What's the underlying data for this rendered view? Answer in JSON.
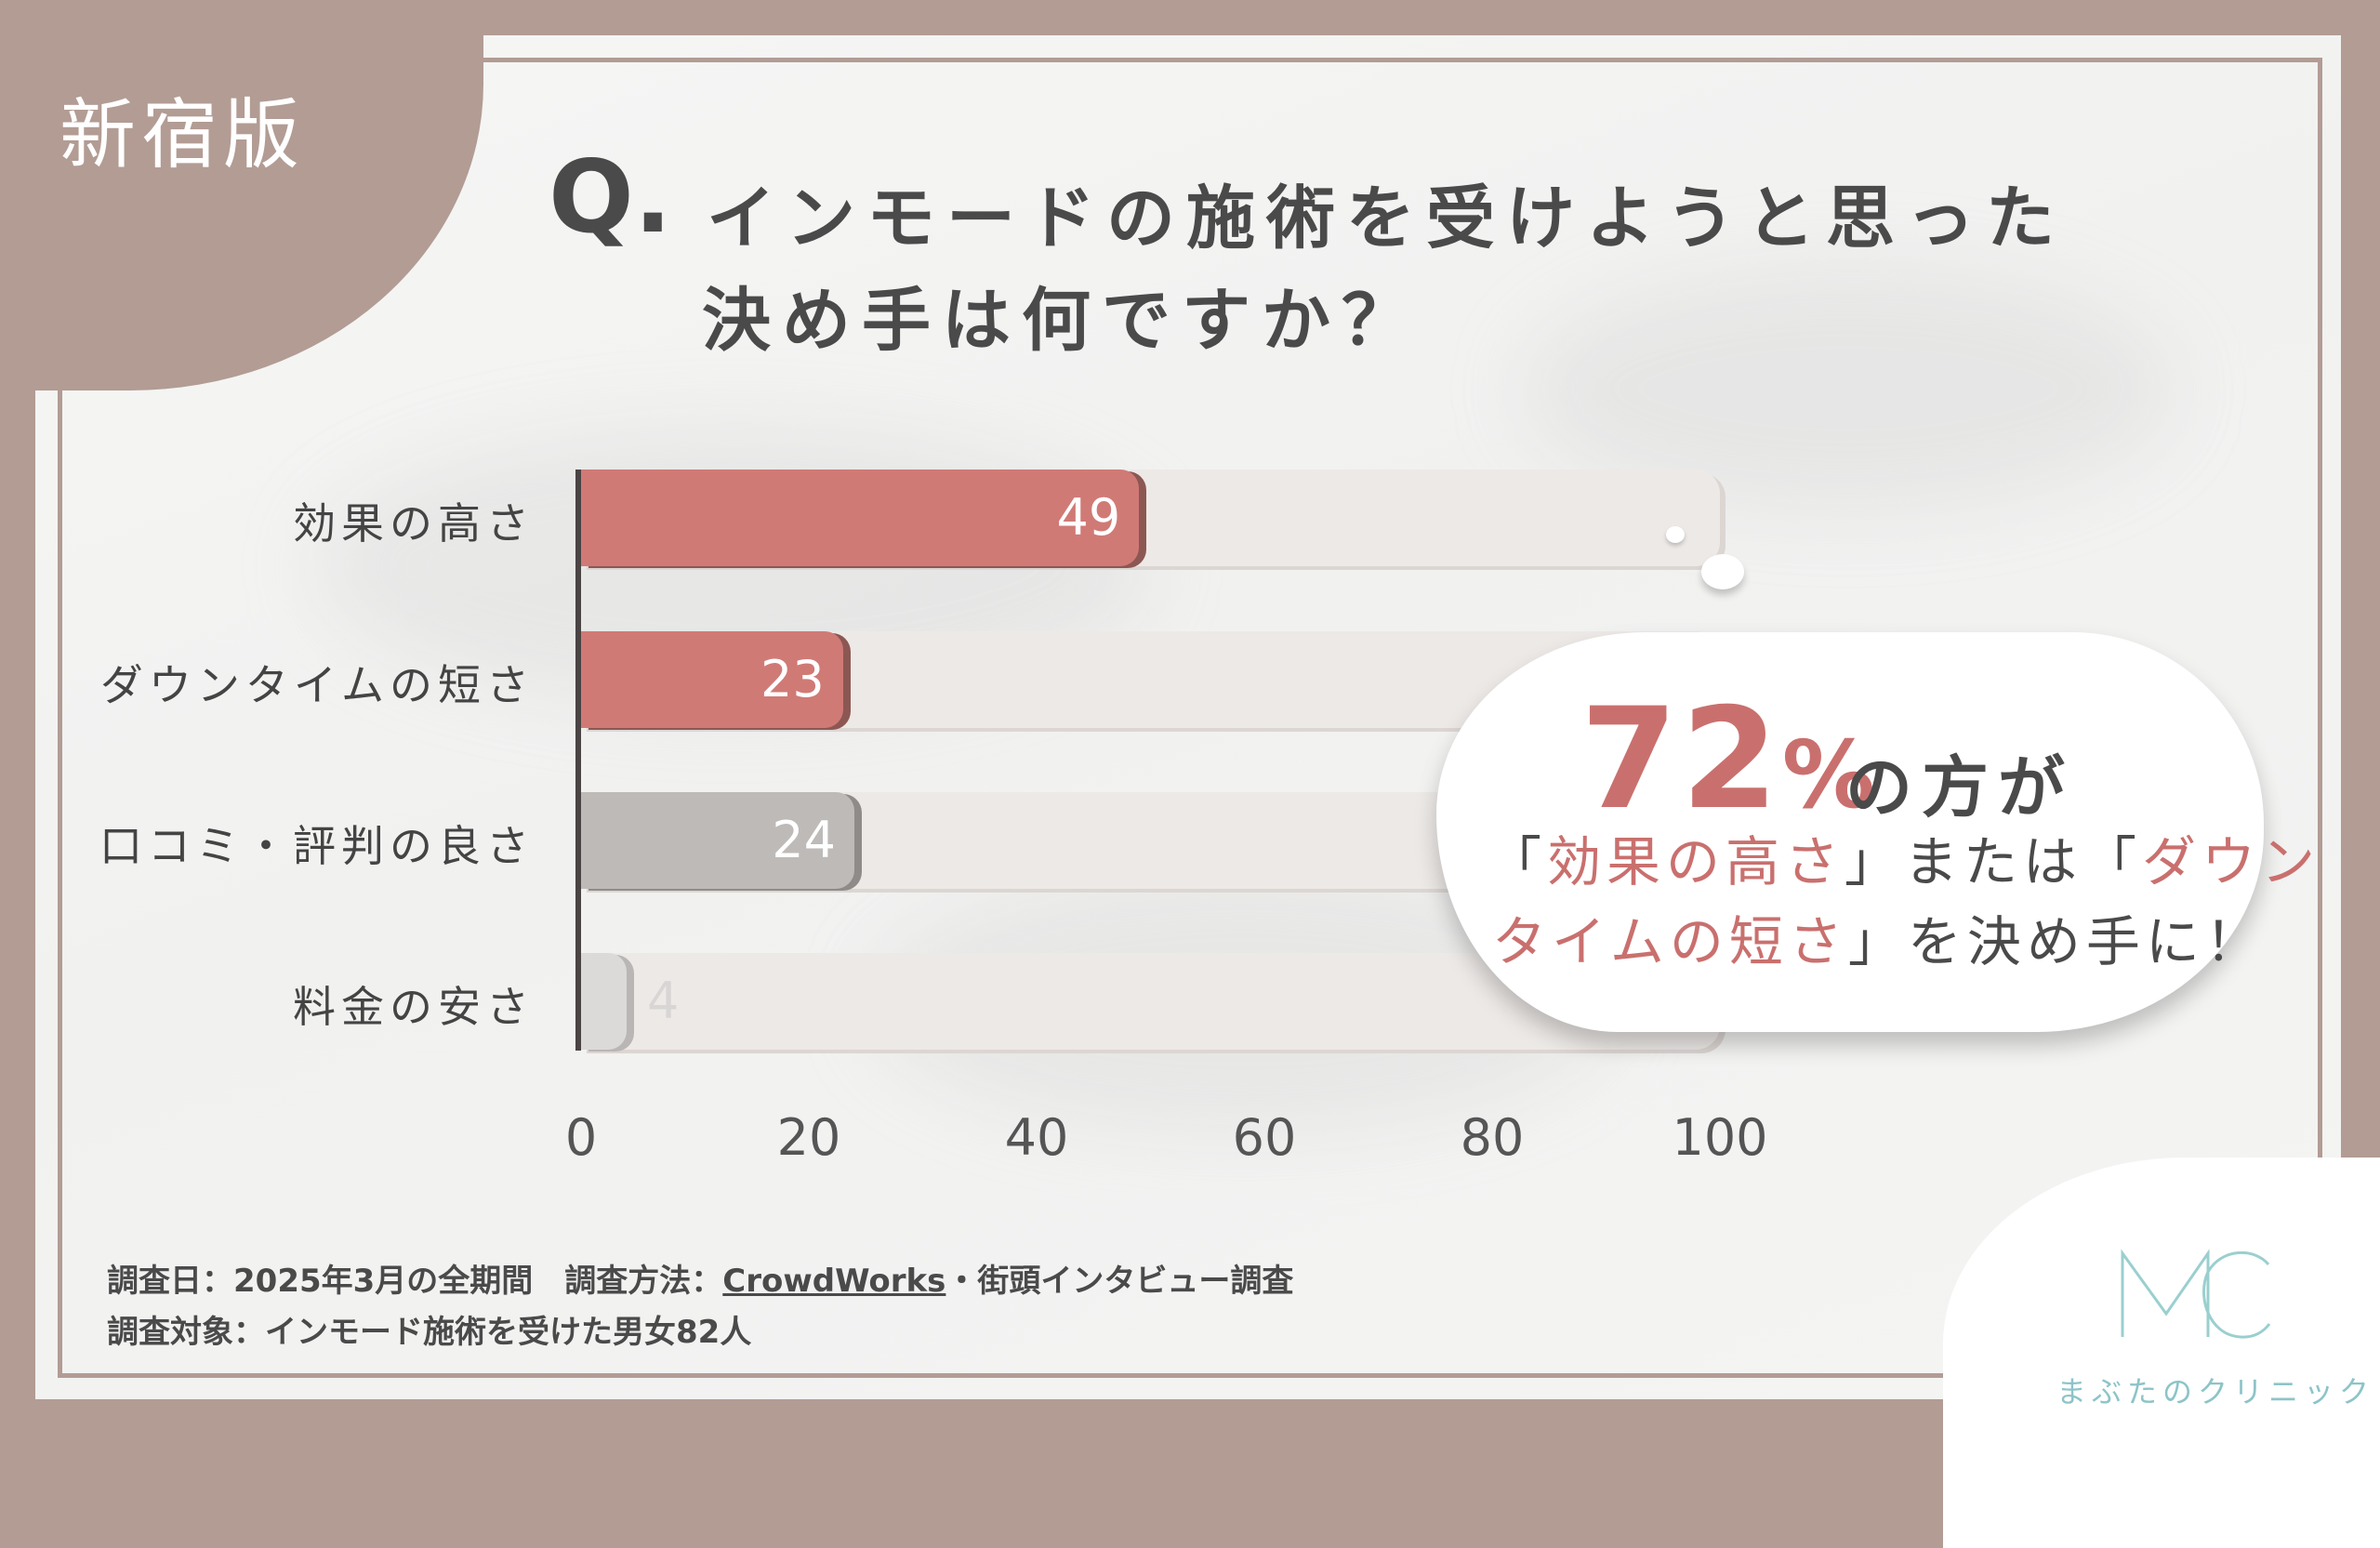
{
  "badge": "新宿版",
  "question": {
    "mark": "Q.",
    "line1": "インモードの施術を受けようと思った",
    "line2": "決め手は何ですか？"
  },
  "chart_data": {
    "type": "bar",
    "orientation": "horizontal",
    "categories": [
      "効果の高さ",
      "ダウンタイムの短さ",
      "口コミ・評判の良さ",
      "料金の安さ"
    ],
    "values": [
      49,
      23,
      24,
      4
    ],
    "xlim": [
      0,
      100
    ],
    "xticks": [
      "0",
      "20",
      "40",
      "60",
      "80",
      "100"
    ],
    "colors": {
      "highlight": "#d07a76",
      "neutral": "#bdbab8",
      "faint": "#dcdad9",
      "track": "#ede9e7"
    },
    "bar_colors": [
      "highlight",
      "highlight",
      "neutral",
      "faint"
    ]
  },
  "callout": {
    "percent": "72",
    "percent_unit": "%",
    "rest": "の方が",
    "l2_q1": "「",
    "l2_a1": "効果の高さ",
    "l2_q2": "」または「",
    "l2_a2": "ダウン",
    "l3_a": "タイムの短さ",
    "l3_rest": "」を決め手に！"
  },
  "footnote": {
    "line1_pre": "調査日：2025年3月の全期間　調査方法：",
    "line1_link": "CrowdWorks",
    "line1_post": "・街頭インタビュー調査",
    "line2": "調査対象：インモード施術を受けた男女82人"
  },
  "logo": {
    "text": "まぶたのクリニック",
    "color": "#8dc4c8"
  }
}
